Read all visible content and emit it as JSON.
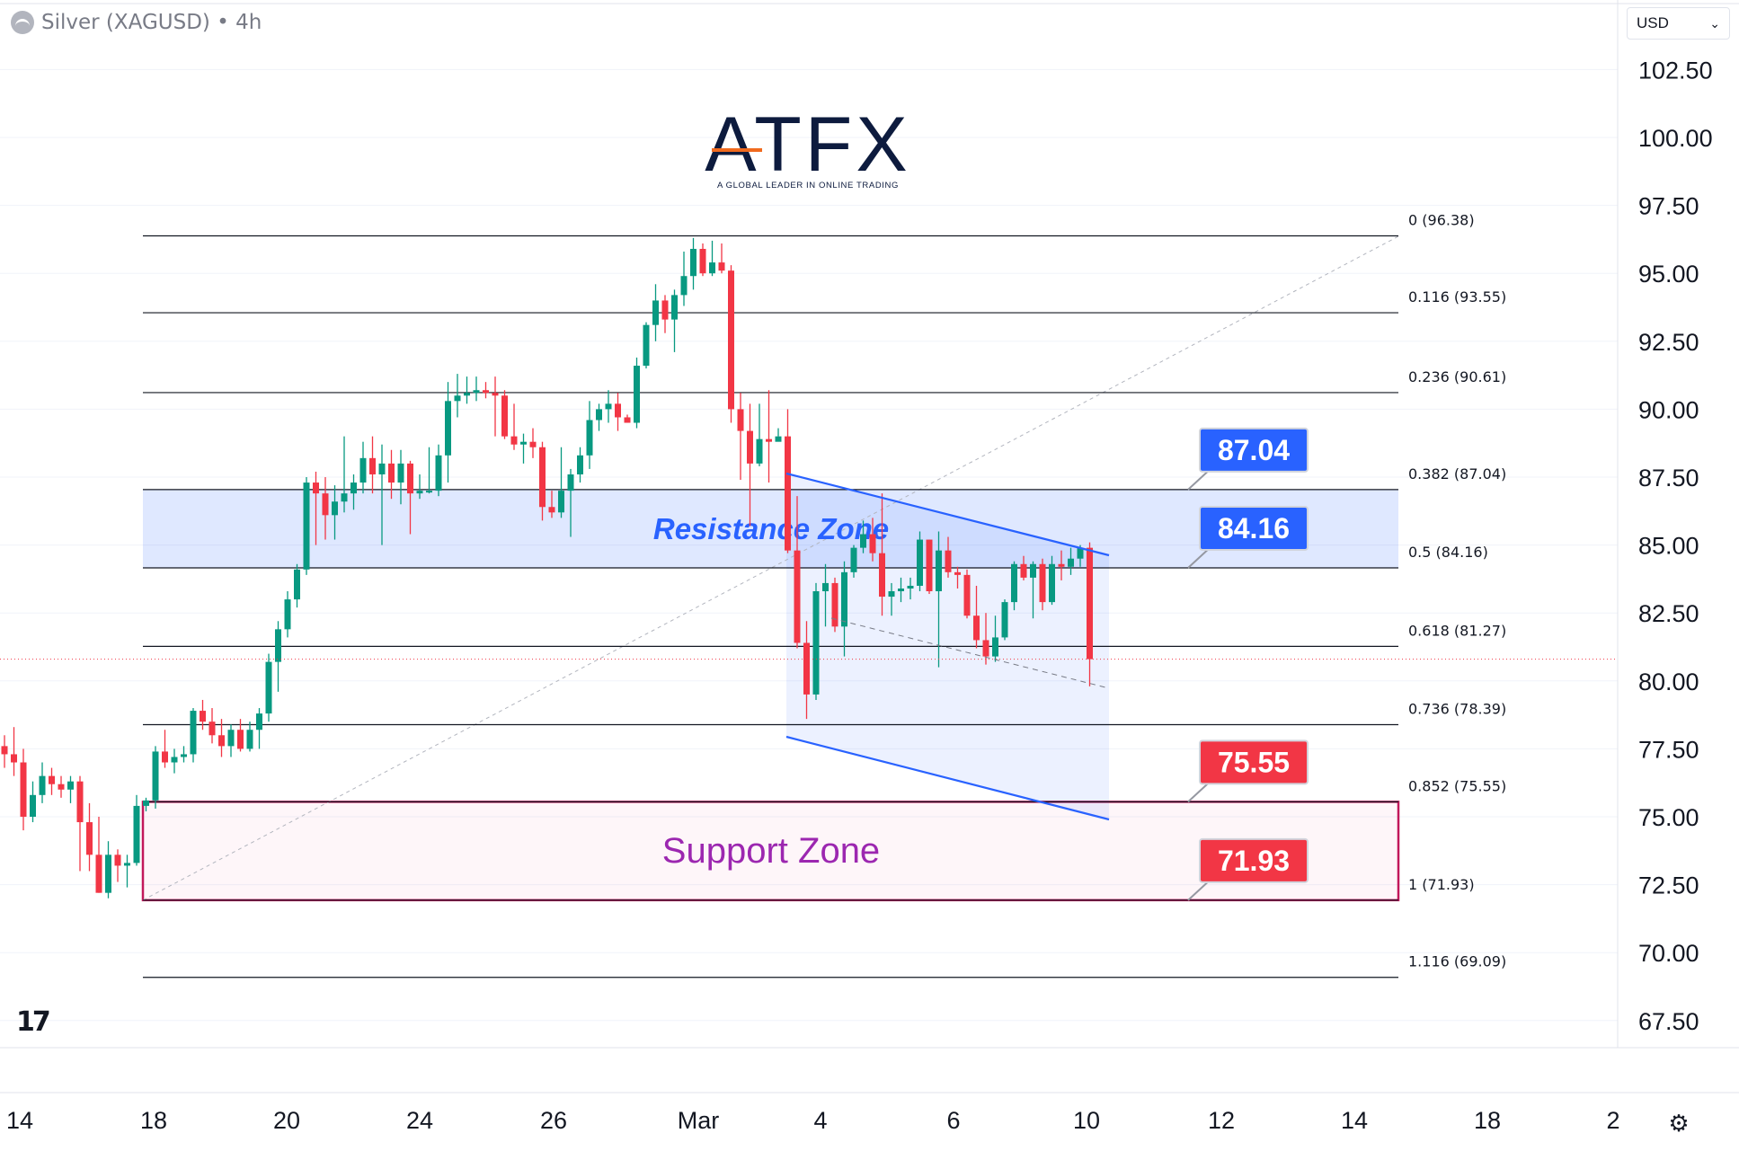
{
  "header": {
    "symbol_title": "Silver (XAGUSD) • 4h",
    "currency": "USD"
  },
  "logo": {
    "name": "ATFX",
    "tagline": "A GLOBAL LEADER IN ONLINE TRADING"
  },
  "chart_data": {
    "type": "candlestick",
    "y_axis": {
      "ticks": [
        "102.50",
        "100.00",
        "97.50",
        "95.00",
        "92.50",
        "90.00",
        "87.50",
        "85.00",
        "82.50",
        "80.00",
        "77.50",
        "75.00",
        "72.50",
        "70.00",
        "67.50"
      ],
      "range": [
        66.0,
        104.0
      ],
      "side": "right"
    },
    "x_axis": {
      "labels": [
        "14",
        "18",
        "20",
        "24",
        "26",
        "Mar",
        "4",
        "6",
        "10",
        "12",
        "14",
        "18",
        "2"
      ]
    },
    "candles": [
      [
        77.6,
        78.0,
        76.8,
        77.3
      ],
      [
        77.3,
        78.3,
        76.5,
        77.0
      ],
      [
        77.0,
        77.5,
        74.5,
        75.0
      ],
      [
        75.0,
        76.3,
        74.8,
        75.8
      ],
      [
        75.8,
        77.0,
        75.5,
        76.5
      ],
      [
        76.5,
        76.8,
        75.8,
        76.2
      ],
      [
        76.2,
        76.5,
        75.7,
        76.0
      ],
      [
        76.0,
        76.5,
        75.5,
        76.3
      ],
      [
        76.3,
        76.5,
        73.0,
        74.8
      ],
      [
        74.8,
        75.5,
        73.0,
        73.6
      ],
      [
        73.6,
        75.0,
        72.2,
        72.2
      ],
      [
        72.2,
        74.1,
        72.0,
        73.6
      ],
      [
        73.6,
        73.8,
        72.6,
        73.2
      ],
      [
        73.2,
        73.6,
        72.4,
        73.3
      ],
      [
        73.3,
        75.8,
        73.2,
        75.4
      ],
      [
        75.4,
        75.7,
        75.2,
        75.6
      ],
      [
        75.6,
        77.6,
        75.3,
        77.4
      ],
      [
        77.4,
        78.2,
        76.8,
        77.0
      ],
      [
        77.0,
        77.5,
        76.6,
        77.2
      ],
      [
        77.2,
        77.6,
        77.0,
        77.3
      ],
      [
        77.3,
        79.0,
        77.0,
        78.9
      ],
      [
        78.9,
        79.3,
        78.2,
        78.5
      ],
      [
        78.5,
        79.0,
        77.7,
        78.0
      ],
      [
        78.0,
        78.6,
        77.2,
        77.6
      ],
      [
        77.6,
        78.4,
        77.2,
        78.2
      ],
      [
        78.2,
        78.6,
        77.4,
        77.5
      ],
      [
        77.5,
        78.5,
        77.4,
        78.2
      ],
      [
        78.2,
        79.0,
        77.5,
        78.8
      ],
      [
        78.8,
        81.0,
        78.5,
        80.7
      ],
      [
        80.7,
        82.2,
        79.6,
        81.9
      ],
      [
        81.9,
        83.3,
        81.6,
        83.0
      ],
      [
        83.0,
        84.3,
        82.7,
        84.1
      ],
      [
        84.1,
        87.5,
        83.9,
        87.3
      ],
      [
        87.3,
        87.7,
        85.0,
        86.9
      ],
      [
        86.9,
        87.5,
        85.2,
        86.1
      ],
      [
        86.1,
        87.2,
        85.2,
        86.6
      ],
      [
        86.6,
        89.0,
        86.2,
        86.9
      ],
      [
        86.9,
        87.6,
        86.3,
        87.3
      ],
      [
        87.3,
        88.8,
        86.9,
        88.2
      ],
      [
        88.2,
        89.0,
        86.9,
        87.6
      ],
      [
        87.6,
        88.7,
        85.0,
        88.0
      ],
      [
        88.0,
        88.5,
        86.7,
        87.3
      ],
      [
        87.3,
        88.5,
        86.5,
        88.0
      ],
      [
        88.0,
        88.1,
        85.4,
        86.9
      ],
      [
        86.9,
        87.6,
        86.7,
        87.0
      ],
      [
        87.0,
        88.6,
        86.9,
        87.0
      ],
      [
        87.0,
        88.7,
        86.8,
        88.3
      ],
      [
        88.3,
        91.0,
        87.3,
        90.3
      ],
      [
        90.3,
        91.3,
        89.7,
        90.5
      ],
      [
        90.5,
        91.2,
        90.2,
        90.6
      ],
      [
        90.6,
        91.2,
        90.3,
        90.7
      ],
      [
        90.7,
        91.0,
        90.4,
        90.6
      ],
      [
        90.6,
        91.2,
        89.0,
        90.5
      ],
      [
        90.5,
        90.7,
        88.9,
        89.0
      ],
      [
        89.0,
        90.2,
        88.5,
        88.7
      ],
      [
        88.7,
        89.1,
        88.0,
        88.8
      ],
      [
        88.8,
        89.3,
        88.2,
        88.6
      ],
      [
        88.6,
        88.8,
        85.9,
        86.4
      ],
      [
        86.4,
        87.0,
        86.0,
        86.2
      ],
      [
        86.2,
        88.6,
        86.0,
        87.0
      ],
      [
        87.0,
        87.8,
        85.3,
        87.6
      ],
      [
        87.6,
        88.6,
        87.3,
        88.3
      ],
      [
        88.3,
        90.3,
        87.8,
        89.6
      ],
      [
        89.6,
        90.2,
        89.2,
        90.0
      ],
      [
        90.0,
        90.7,
        89.5,
        90.2
      ],
      [
        90.2,
        90.6,
        89.2,
        89.7
      ],
      [
        89.7,
        89.8,
        89.5,
        89.5
      ],
      [
        89.5,
        91.9,
        89.3,
        91.6
      ],
      [
        91.6,
        93.2,
        91.5,
        93.1
      ],
      [
        93.1,
        94.6,
        92.5,
        94.0
      ],
      [
        94.0,
        94.2,
        92.8,
        93.3
      ],
      [
        93.3,
        94.4,
        92.1,
        94.2
      ],
      [
        94.2,
        95.8,
        93.8,
        94.9
      ],
      [
        94.9,
        96.3,
        94.4,
        95.9
      ],
      [
        95.9,
        96.1,
        94.9,
        95.0
      ],
      [
        95.0,
        96.2,
        94.9,
        95.4
      ],
      [
        95.4,
        96.1,
        95.0,
        95.1
      ],
      [
        95.1,
        95.3,
        89.5,
        90.0
      ],
      [
        90.0,
        90.6,
        87.4,
        89.2
      ],
      [
        89.2,
        90.2,
        85.7,
        88.0
      ],
      [
        88.0,
        90.2,
        87.9,
        88.9
      ],
      [
        88.9,
        90.7,
        87.3,
        88.8
      ],
      [
        88.8,
        89.3,
        89.0,
        89.0
      ],
      [
        89.0,
        90.0,
        84.7,
        84.8
      ],
      [
        84.8,
        86.8,
        81.2,
        81.4
      ],
      [
        81.4,
        82.2,
        78.6,
        79.5
      ],
      [
        79.5,
        83.6,
        79.3,
        83.3
      ],
      [
        83.3,
        84.3,
        82.0,
        83.6
      ],
      [
        83.6,
        83.8,
        81.8,
        82.0
      ],
      [
        82.0,
        84.4,
        80.9,
        84.0
      ],
      [
        84.0,
        85.0,
        83.8,
        84.9
      ],
      [
        84.9,
        85.9,
        84.7,
        85.4
      ],
      [
        85.4,
        86.0,
        84.4,
        84.7
      ],
      [
        84.7,
        86.9,
        82.4,
        83.1
      ],
      [
        83.1,
        83.6,
        82.4,
        83.3
      ],
      [
        83.3,
        83.8,
        82.9,
        83.4
      ],
      [
        83.4,
        83.8,
        83.0,
        83.5
      ],
      [
        83.5,
        85.5,
        83.3,
        85.2
      ],
      [
        85.2,
        85.2,
        83.2,
        83.3
      ],
      [
        83.3,
        85.5,
        80.5,
        84.8
      ],
      [
        84.8,
        85.3,
        83.8,
        84.0
      ],
      [
        84.0,
        84.2,
        83.4,
        83.9
      ],
      [
        83.9,
        84.1,
        82.3,
        82.4
      ],
      [
        82.4,
        83.5,
        81.2,
        81.5
      ],
      [
        81.5,
        82.5,
        80.6,
        80.9
      ],
      [
        80.9,
        82.4,
        80.7,
        81.6
      ],
      [
        81.6,
        83.0,
        81.5,
        82.9
      ],
      [
        82.9,
        84.4,
        82.6,
        84.3
      ],
      [
        84.3,
        84.6,
        83.7,
        83.8
      ],
      [
        83.8,
        84.4,
        82.3,
        84.3
      ],
      [
        84.3,
        84.5,
        82.6,
        82.9
      ],
      [
        82.9,
        84.6,
        82.8,
        84.3
      ],
      [
        84.3,
        84.8,
        83.7,
        84.2
      ],
      [
        84.2,
        84.9,
        83.9,
        84.5
      ],
      [
        84.5,
        85.0,
        84.2,
        84.9
      ],
      [
        84.9,
        85.1,
        79.8,
        80.8
      ]
    ],
    "fibonacci": [
      {
        "label": "0 (96.38)",
        "value": 96.38
      },
      {
        "label": "0.116 (93.55)",
        "value": 93.55
      },
      {
        "label": "0.236 (90.61)",
        "value": 90.61
      },
      {
        "label": "0.382 (87.04)",
        "value": 87.04
      },
      {
        "label": "0.5 (84.16)",
        "value": 84.16
      },
      {
        "label": "0.618 (81.27)",
        "value": 81.27
      },
      {
        "label": "0.736 (78.39)",
        "value": 78.39
      },
      {
        "label": "0.852 (75.55)",
        "value": 75.55
      },
      {
        "label": "1 (71.93)",
        "value": 71.93
      },
      {
        "label": "1.116 (69.09)",
        "value": 69.09
      }
    ],
    "zones": [
      {
        "label": "Resistance Zone",
        "low": 84.16,
        "high": 87.04,
        "color": "#2962ff"
      },
      {
        "label": "Support Zone",
        "low": 71.93,
        "high": 75.55,
        "color": "#c2185b"
      }
    ],
    "price_tags": [
      {
        "text": "87.04",
        "value": 87.04,
        "color": "#2962ff"
      },
      {
        "text": "84.16",
        "value": 84.16,
        "color": "#2962ff"
      },
      {
        "text": "75.55",
        "value": 75.55,
        "color": "#f23645"
      },
      {
        "text": "71.93",
        "value": 71.93,
        "color": "#f23645"
      }
    ],
    "current_price": 80.8,
    "up_color": "#089981",
    "down_color": "#f23645",
    "grid": true
  }
}
